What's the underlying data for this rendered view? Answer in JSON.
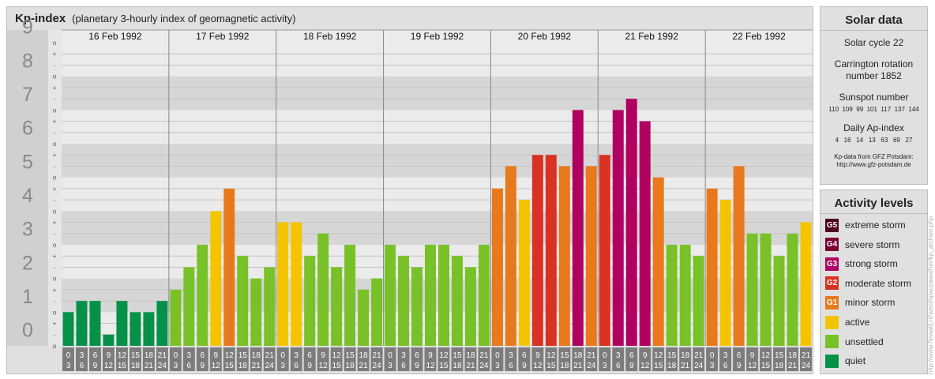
{
  "header": {
    "title": "Kp-index",
    "subtitle": "(planetary 3-hourly index of geomagnetic activity)"
  },
  "chart_data": {
    "type": "bar",
    "ylim": [
      0,
      9
    ],
    "y_ticks": [
      "0",
      "1",
      "2",
      "3",
      "4",
      "5",
      "6",
      "7",
      "8",
      "9"
    ],
    "minor_marks": [
      "o",
      "+",
      "-",
      "o",
      "+",
      "-",
      "o",
      "+",
      "-",
      "o",
      "+",
      "-",
      "o",
      "+",
      "-",
      "o",
      "+",
      "-",
      "o",
      "+",
      "-",
      "o",
      "+",
      "-",
      "o",
      "+",
      "-",
      "o"
    ],
    "days": [
      "16 Feb 1992",
      "17 Feb 1992",
      "18 Feb 1992",
      "19 Feb 1992",
      "20 Feb 1992",
      "21 Feb 1992",
      "22 Feb 1992"
    ],
    "interval_labels": [
      [
        "0",
        "3"
      ],
      [
        "3",
        "6"
      ],
      [
        "6",
        "9"
      ],
      [
        "9",
        "12"
      ],
      [
        "12",
        "15"
      ],
      [
        "15",
        "18"
      ],
      [
        "18",
        "21"
      ],
      [
        "21",
        "24"
      ]
    ],
    "values": [
      1.0,
      1.333,
      1.333,
      0.333,
      1.333,
      1.0,
      1.0,
      1.333,
      1.667,
      2.333,
      3.0,
      4.0,
      4.667,
      2.667,
      2.0,
      2.333,
      3.667,
      3.667,
      2.667,
      3.333,
      2.333,
      3.0,
      1.667,
      2.0,
      3.0,
      2.667,
      2.333,
      3.0,
      3.0,
      2.667,
      2.333,
      3.0,
      4.667,
      5.333,
      4.333,
      5.667,
      5.667,
      5.333,
      7.0,
      5.333,
      5.667,
      7.0,
      7.333,
      6.667,
      5.0,
      3.0,
      3.0,
      2.667,
      4.667,
      4.333,
      5.333,
      3.333,
      3.333,
      2.667,
      3.333,
      3.667
    ],
    "level_colors": {
      "G5": "#4f0020",
      "G4": "#7a0038",
      "G3": "#b00060",
      "G2": "#d93122",
      "G1": "#e8791c",
      "active": "#f5c400",
      "unsettled": "#79c128",
      "quiet": "#059148"
    }
  },
  "solar": {
    "heading": "Solar data",
    "cycle": "Solar cycle 22",
    "carrington_1": "Carrington rotation",
    "carrington_2": "number 1852",
    "sunspot_heading": "Sunspot number",
    "sunspot_values": "110  109  99  101  117  137  144",
    "ap_heading": "Daily Ap-index",
    "ap_values": "4   16   14   13   63   69   27",
    "note_1": "Kp-data from GFZ Potsdam:",
    "note_2": "http://www.gfz-potsdam.de"
  },
  "legend": {
    "heading": "Activity levels",
    "items": [
      {
        "badge": "G5",
        "label": "extreme storm",
        "color": "#4f0020"
      },
      {
        "badge": "G4",
        "label": "severe storm",
        "color": "#7a0038"
      },
      {
        "badge": "G3",
        "label": "strong storm",
        "color": "#b00060"
      },
      {
        "badge": "G2",
        "label": "moderate storm",
        "color": "#d93122"
      },
      {
        "badge": "G1",
        "label": "minor storm",
        "color": "#e8791c"
      },
      {
        "badge": "",
        "label": "active",
        "color": "#f5c400"
      },
      {
        "badge": "",
        "label": "unsettled",
        "color": "#79c128"
      },
      {
        "badge": "",
        "label": "quiet",
        "color": "#059148"
      }
    ]
  },
  "credit": "http://www.ftewald.nl/wenl/spaceweather/kp_archive.php"
}
